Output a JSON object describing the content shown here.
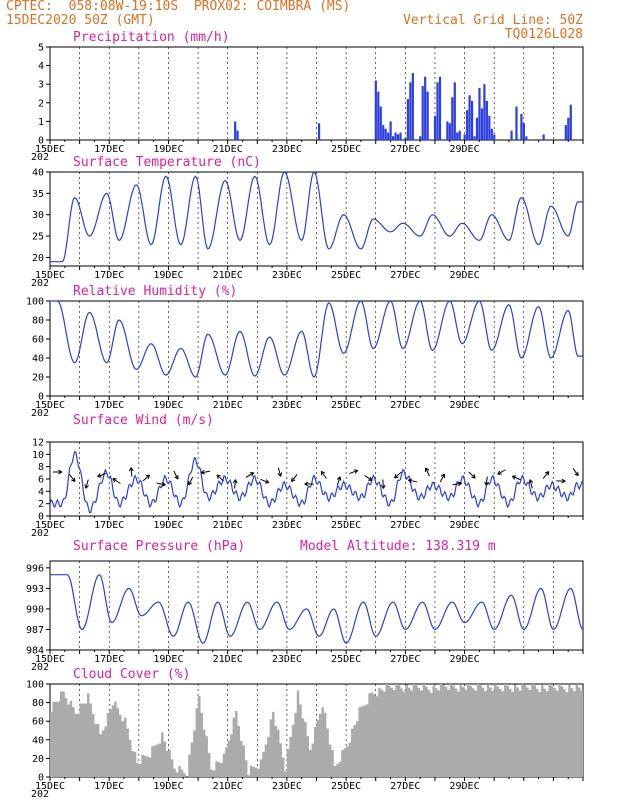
{
  "header": {
    "line1": "CPTEC:  058:08W-19:10S  PROX02: COIMBRA (MS)",
    "line2_left": "15DEC2020 50Z (GMT)",
    "line2_right": "Vertical Grid Line: 50Z",
    "line3_right": "TQ0126L028"
  },
  "colors": {
    "series": "#2b3fe0",
    "gray": "#ababab",
    "pink": "#e0209a",
    "orange": "#e07020",
    "arrow": "#000000"
  },
  "day_labels": [
    "15DEC",
    "17DEC",
    "19DEC",
    "21DEC",
    "23DEC",
    "25DEC",
    "27DEC",
    "29DEC"
  ],
  "year_tag": "202",
  "chart_data": [
    {
      "type": "bar",
      "title": "Precipitation (mm/h)",
      "ylim": [
        0,
        5
      ],
      "yticks": [
        0,
        1,
        2,
        3,
        4,
        5
      ],
      "x_unit": "hours since 15DEC 00Z",
      "x": [
        150,
        152,
        218,
        264,
        266,
        268,
        270,
        272,
        274,
        276,
        278,
        280,
        282,
        284,
        288,
        290,
        292,
        294,
        300,
        302,
        304,
        306,
        312,
        314,
        316,
        322,
        324,
        326,
        328,
        330,
        332,
        336,
        338,
        340,
        342,
        344,
        346,
        348,
        350,
        352,
        354,
        356,
        358,
        360,
        374,
        378,
        382,
        384,
        386,
        400,
        418,
        420,
        422
      ],
      "values": [
        1.0,
        0.5,
        0.9,
        3.2,
        2.6,
        1.8,
        0.8,
        0.6,
        0.4,
        1.0,
        0.2,
        0.4,
        0.3,
        0.4,
        0.1,
        2.2,
        3.1,
        3.6,
        0.2,
        2.9,
        3.4,
        2.6,
        1.3,
        3.1,
        3.4,
        1.0,
        0.9,
        2.3,
        3.1,
        0.4,
        0.5,
        0.3,
        1.6,
        2.4,
        2.1,
        0.2,
        1.2,
        2.8,
        1.7,
        3.0,
        2.1,
        1.3,
        0.6,
        0.3,
        0.5,
        1.8,
        1.4,
        0.9,
        0.2,
        0.3,
        0.8,
        1.2,
        1.9
      ]
    },
    {
      "type": "line",
      "title": "Surface Temperature (nC)",
      "ylim": [
        18,
        40
      ],
      "yticks": [
        20,
        25,
        30,
        35,
        40
      ],
      "min_hours": [
        10,
        32,
        56,
        82,
        106,
        128,
        154,
        178,
        204,
        226,
        252,
        276,
        300,
        324,
        348,
        372,
        396,
        420
      ],
      "min_values": [
        19,
        25,
        24,
        23,
        23,
        22,
        24,
        23,
        24,
        22,
        22,
        26,
        25,
        25,
        24,
        24,
        23,
        25
      ],
      "max_hours": [
        20,
        46,
        70,
        94,
        118,
        142,
        166,
        190,
        214,
        238,
        262,
        286,
        310,
        334,
        358,
        382,
        406,
        428
      ],
      "max_values": [
        34,
        35,
        37,
        39,
        39,
        38,
        39,
        40,
        40,
        30,
        29,
        28,
        30,
        28,
        30,
        34,
        32,
        33
      ]
    },
    {
      "type": "line",
      "title": "Relative Humidity (%)",
      "ylim": [
        0,
        100
      ],
      "yticks": [
        0,
        20,
        40,
        60,
        80,
        100
      ],
      "min_hours": [
        20,
        46,
        70,
        94,
        118,
        142,
        166,
        190,
        214,
        238,
        262,
        286,
        310,
        334,
        358,
        382,
        406,
        428
      ],
      "min_values": [
        35,
        35,
        28,
        22,
        20,
        22,
        21,
        22,
        20,
        45,
        50,
        50,
        48,
        55,
        48,
        40,
        40,
        42
      ],
      "max_hours": [
        6,
        32,
        56,
        82,
        106,
        128,
        154,
        178,
        204,
        226,
        252,
        276,
        300,
        324,
        348,
        372,
        396,
        420
      ],
      "max_values": [
        100,
        88,
        80,
        55,
        50,
        65,
        68,
        62,
        68,
        98,
        100,
        100,
        100,
        100,
        100,
        96,
        94,
        90
      ]
    },
    {
      "type": "line",
      "title": "Surface Wind (m/s)",
      "ylim": [
        0,
        12
      ],
      "yticks": [
        0,
        2,
        4,
        6,
        8,
        10,
        12
      ],
      "min_hours": [
        10,
        32,
        56,
        82,
        106,
        128,
        154,
        178,
        204,
        226,
        252,
        276,
        300,
        324,
        348,
        372,
        396,
        420
      ],
      "min_values": [
        2,
        1,
        2,
        2,
        2,
        3,
        3,
        2,
        2,
        3,
        3,
        2,
        3,
        3,
        2,
        2,
        3,
        3
      ],
      "max_hours": [
        20,
        46,
        70,
        94,
        118,
        142,
        166,
        190,
        214,
        238,
        262,
        286,
        310,
        334,
        358,
        382,
        406,
        428
      ],
      "max_values": [
        10,
        7,
        6,
        6,
        9,
        6,
        6,
        5,
        6,
        5,
        6,
        7,
        5,
        6,
        6,
        6,
        5,
        5
      ]
    },
    {
      "type": "line",
      "title": "Surface Pressure (hPa)",
      "annotation": "Model Altitude: 138.319  m",
      "ylim": [
        984,
        997
      ],
      "yticks": [
        984,
        987,
        990,
        993,
        996
      ],
      "min_hours": [
        26,
        50,
        74,
        100,
        124,
        146,
        170,
        194,
        218,
        240,
        264,
        288,
        312,
        336,
        360,
        384,
        408,
        432
      ],
      "min_values": [
        987,
        988,
        989,
        986,
        985,
        986,
        987,
        987,
        986,
        985,
        986,
        987,
        987,
        988,
        987,
        987,
        987,
        987
      ],
      "max_hours": [
        14,
        40,
        64,
        88,
        112,
        136,
        160,
        184,
        208,
        230,
        254,
        278,
        302,
        326,
        350,
        374,
        398,
        422
      ],
      "max_values": [
        995,
        995,
        993,
        991,
        991,
        991,
        991,
        991,
        990,
        990,
        991,
        991,
        991,
        991,
        991,
        992,
        993,
        993
      ]
    },
    {
      "type": "area",
      "title": "Cloud Cover (%)",
      "ylim": [
        0,
        100
      ],
      "yticks": [
        0,
        20,
        40,
        60,
        80,
        100
      ],
      "x": [
        0,
        10,
        20,
        30,
        40,
        50,
        60,
        70,
        80,
        90,
        100,
        110,
        120,
        130,
        140,
        150,
        160,
        170,
        180,
        190,
        200,
        210,
        220,
        230,
        240,
        250,
        260,
        270,
        280,
        290,
        300,
        310,
        320,
        330,
        340,
        350,
        360,
        370,
        380,
        390,
        400,
        410,
        420,
        430
      ],
      "values": [
        75,
        90,
        70,
        85,
        45,
        80,
        60,
        15,
        25,
        45,
        10,
        5,
        85,
        10,
        20,
        70,
        5,
        15,
        70,
        10,
        90,
        30,
        80,
        10,
        35,
        70,
        90,
        95,
        98,
        96,
        97,
        95,
        98,
        97,
        96,
        98,
        95,
        97,
        96,
        98,
        95,
        97,
        96,
        94
      ]
    }
  ]
}
